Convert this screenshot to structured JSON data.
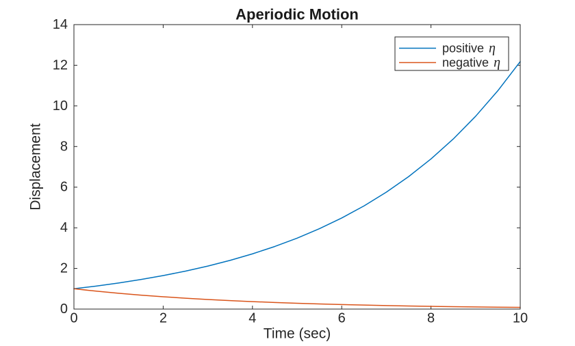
{
  "figure": {
    "background": "#ffffff",
    "axes_color": "#262626",
    "text_color": "#262626"
  },
  "chart_data": {
    "type": "line",
    "title": "Aperiodic Motion",
    "xlabel": "Time (sec)",
    "ylabel": "Displacement",
    "xlim": [
      0,
      10
    ],
    "ylim": [
      0,
      14
    ],
    "xticks": [
      0,
      2,
      4,
      6,
      8,
      10
    ],
    "yticks": [
      0,
      2,
      4,
      6,
      8,
      10,
      12,
      14
    ],
    "grid": false,
    "box": true,
    "tick_direction": "in",
    "legend_position": "top-right",
    "x": [
      0,
      0.5,
      1,
      1.5,
      2,
      2.5,
      3,
      3.5,
      4,
      4.5,
      5,
      5.5,
      6,
      6.5,
      7,
      7.5,
      8,
      8.5,
      9,
      9.5,
      10
    ],
    "series": [
      {
        "name": "positive η",
        "color": "#0072BD",
        "values": [
          1,
          1.133,
          1.284,
          1.455,
          1.649,
          1.868,
          2.117,
          2.399,
          2.718,
          3.08,
          3.49,
          3.956,
          4.482,
          5.078,
          5.755,
          6.521,
          7.389,
          8.372,
          9.488,
          10.751,
          12.182
        ]
      },
      {
        "name": "negative η",
        "color": "#D95319",
        "values": [
          1,
          0.882,
          0.779,
          0.687,
          0.607,
          0.535,
          0.472,
          0.417,
          0.368,
          0.325,
          0.287,
          0.253,
          0.223,
          0.197,
          0.174,
          0.153,
          0.135,
          0.119,
          0.105,
          0.093,
          0.082
        ]
      }
    ]
  },
  "legend": {
    "border_color": "#262626",
    "background": "#ffffff",
    "items": [
      {
        "prefix": "positive",
        "symbol": "η",
        "color": "#0072BD"
      },
      {
        "prefix": "negative",
        "symbol": "η",
        "color": "#D95319"
      }
    ]
  }
}
